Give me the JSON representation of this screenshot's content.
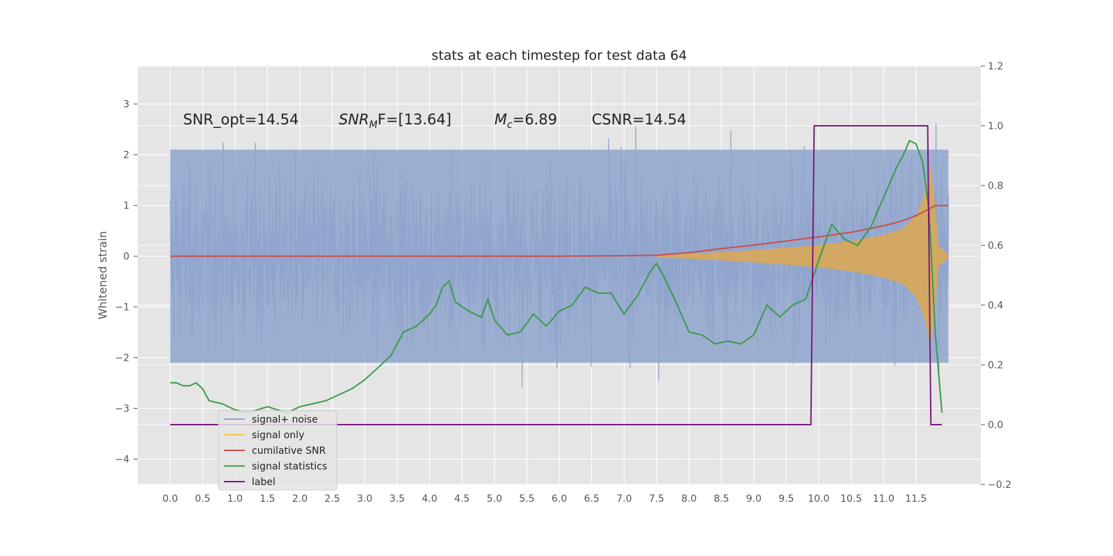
{
  "chart_data": {
    "type": "line",
    "title": "stats at each timestep for test data 64",
    "ylabel": "Whitened strain",
    "xlabel": "",
    "xlim": [
      -0.5,
      12.5
    ],
    "ylim": [
      -4.5,
      3.75
    ],
    "y2lim": [
      -0.2,
      1.2
    ],
    "grid": true,
    "legend_position": "lower-left",
    "x_ticks": [
      "0.0",
      "0.5",
      "1.0",
      "1.5",
      "2.0",
      "2.5",
      "3.0",
      "3.5",
      "4.0",
      "4.5",
      "5.0",
      "5.5",
      "6.0",
      "6.5",
      "7.0",
      "7.5",
      "8.0",
      "8.5",
      "9.0",
      "9.5",
      "10.0",
      "10.5",
      "11.0",
      "11.5"
    ],
    "y_ticks": [
      "3",
      "2",
      "1",
      "0",
      "−1",
      "−2",
      "−3",
      "−4"
    ],
    "y2_ticks": [
      "1.2",
      "1.0",
      "0.8",
      "0.6",
      "0.4",
      "0.2",
      "0.0",
      "−0.2"
    ],
    "annotations": [
      {
        "text": "SNR_opt=14.54",
        "x": 0.2,
        "y": 2.6
      },
      {
        "text_main": "SNR",
        "text_sub": "M",
        "text_rest": "F=[13.64]",
        "x": 2.6,
        "y": 2.6
      },
      {
        "text_main": "M",
        "text_sub": "c",
        "text_rest": "=6.89",
        "x": 5.0,
        "y": 2.6
      },
      {
        "text": "CSNR=14.54",
        "x": 6.5,
        "y": 2.6
      }
    ],
    "series": [
      {
        "name": "signal+ noise",
        "color": "#8fa5cc",
        "envelope_upper": 2.1,
        "envelope_lower": -2.1,
        "x_range": [
          0.0,
          12.0
        ]
      },
      {
        "name": "signal only",
        "color": "#f5c242",
        "fill_color": "#d9a857",
        "x": [
          7.5,
          8.0,
          8.5,
          9.0,
          9.5,
          10.0,
          10.5,
          11.0,
          11.3,
          11.5,
          11.65,
          11.72,
          11.78,
          11.85,
          12.0
        ],
        "y": [
          0.02,
          0.05,
          0.08,
          0.12,
          0.17,
          0.22,
          0.3,
          0.42,
          0.55,
          0.8,
          1.3,
          1.8,
          1.2,
          0.2,
          0.03
        ]
      },
      {
        "name": "cumilative SNR",
        "color": "#cc4c4c",
        "x": [
          0.0,
          1.0,
          2.0,
          3.0,
          4.0,
          5.0,
          6.0,
          7.0,
          7.5,
          8.0,
          8.5,
          9.0,
          9.5,
          10.0,
          10.5,
          11.0,
          11.3,
          11.5,
          11.7,
          11.8,
          12.0
        ],
        "y": [
          0.0,
          0.0,
          0.0,
          0.0,
          0.0,
          0.0,
          0.0,
          0.01,
          0.02,
          0.07,
          0.15,
          0.22,
          0.3,
          0.38,
          0.47,
          0.6,
          0.7,
          0.8,
          0.93,
          1.0,
          1.0
        ]
      },
      {
        "name": "signal statistics",
        "color": "#3a9a4a",
        "axis": "right",
        "x": [
          0.0,
          0.1,
          0.2,
          0.3,
          0.4,
          0.5,
          0.6,
          0.8,
          1.0,
          1.2,
          1.5,
          1.8,
          2.0,
          2.2,
          2.4,
          2.6,
          2.8,
          3.0,
          3.2,
          3.4,
          3.6,
          3.8,
          4.0,
          4.1,
          4.2,
          4.3,
          4.4,
          4.6,
          4.8,
          4.9,
          5.0,
          5.2,
          5.4,
          5.6,
          5.8,
          6.0,
          6.2,
          6.4,
          6.6,
          6.8,
          7.0,
          7.2,
          7.4,
          7.5,
          7.6,
          7.8,
          8.0,
          8.2,
          8.4,
          8.6,
          8.8,
          9.0,
          9.2,
          9.4,
          9.6,
          9.8,
          10.0,
          10.2,
          10.4,
          10.6,
          10.8,
          11.0,
          11.2,
          11.3,
          11.4,
          11.5,
          11.6,
          11.7,
          11.8,
          11.9
        ],
        "y": [
          0.14,
          0.14,
          0.13,
          0.13,
          0.14,
          0.12,
          0.08,
          0.07,
          0.05,
          0.04,
          0.06,
          0.04,
          0.06,
          0.07,
          0.08,
          0.1,
          0.12,
          0.15,
          0.19,
          0.23,
          0.31,
          0.33,
          0.37,
          0.4,
          0.46,
          0.48,
          0.41,
          0.38,
          0.36,
          0.42,
          0.35,
          0.3,
          0.31,
          0.37,
          0.33,
          0.38,
          0.4,
          0.46,
          0.44,
          0.44,
          0.37,
          0.43,
          0.51,
          0.54,
          0.5,
          0.41,
          0.31,
          0.3,
          0.27,
          0.28,
          0.27,
          0.3,
          0.4,
          0.36,
          0.4,
          0.42,
          0.55,
          0.67,
          0.62,
          0.6,
          0.66,
          0.76,
          0.86,
          0.9,
          0.95,
          0.94,
          0.88,
          0.72,
          0.3,
          0.04
        ]
      },
      {
        "name": "label",
        "color": "#7b1a7b",
        "axis": "right",
        "x": [
          0.0,
          9.88,
          9.93,
          11.68,
          11.73,
          11.9
        ],
        "y": [
          0.0,
          0.0,
          1.0,
          1.0,
          0.0,
          0.0
        ]
      }
    ],
    "legend": [
      {
        "label": "signal+ noise",
        "color": "#8fa5cc"
      },
      {
        "label": "signal only",
        "color": "#f5c242"
      },
      {
        "label": "cumilative SNR",
        "color": "#cc4c4c"
      },
      {
        "label": "signal statistics",
        "color": "#3a9a4a"
      },
      {
        "label": "label",
        "color": "#7b1a7b"
      }
    ]
  }
}
